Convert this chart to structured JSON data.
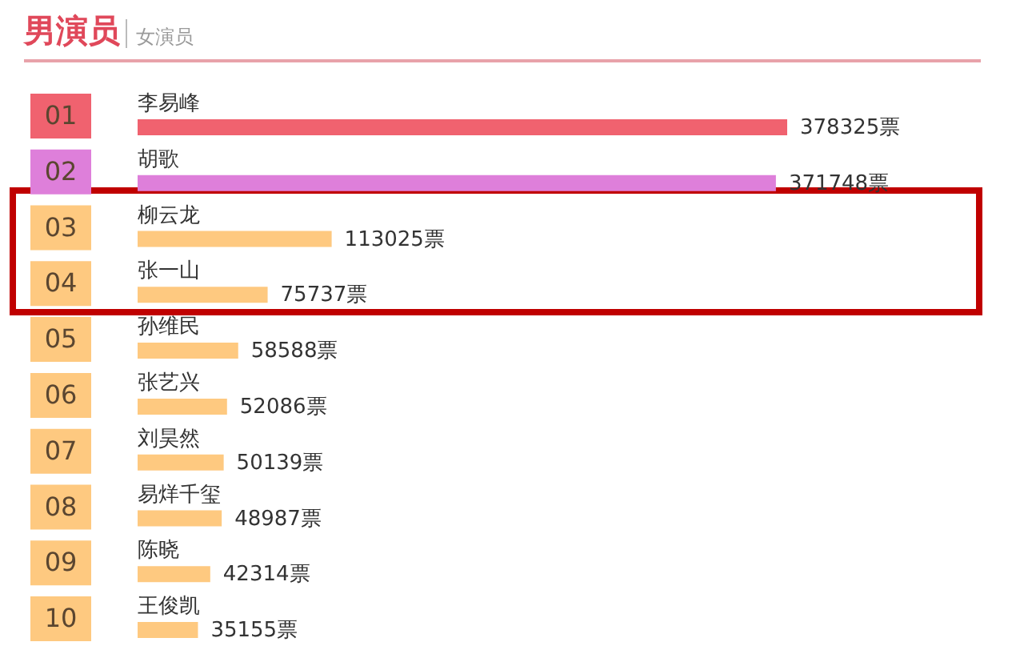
{
  "chart_data": {
    "type": "bar",
    "orientation": "horizontal",
    "title": "男演员",
    "subtitle": "女演员",
    "categories": [
      "李易峰",
      "胡歌",
      "柳云龙",
      "张一山",
      "孙维民",
      "张艺兴",
      "刘昊然",
      "易烊千玺",
      "陈晓",
      "王俊凯"
    ],
    "values": [
      378325,
      371748,
      113025,
      75737,
      58588,
      52086,
      50139,
      48987,
      42314,
      35155
    ],
    "colors": [
      "#f0626f",
      "#de7fda",
      "#fec980",
      "#fec980",
      "#fec980",
      "#fec980",
      "#fec980",
      "#fec980",
      "#fec980",
      "#fec980"
    ],
    "value_labels": [
      "378325票",
      "371748票",
      "113025票",
      "75737票",
      "58588票",
      "52086票",
      "50139票",
      "48987票",
      "42314票",
      "35155票"
    ],
    "annotations": [
      "01",
      "02",
      "03",
      "04",
      "05",
      "06",
      "07",
      "08",
      "09",
      "10"
    ]
  }
}
